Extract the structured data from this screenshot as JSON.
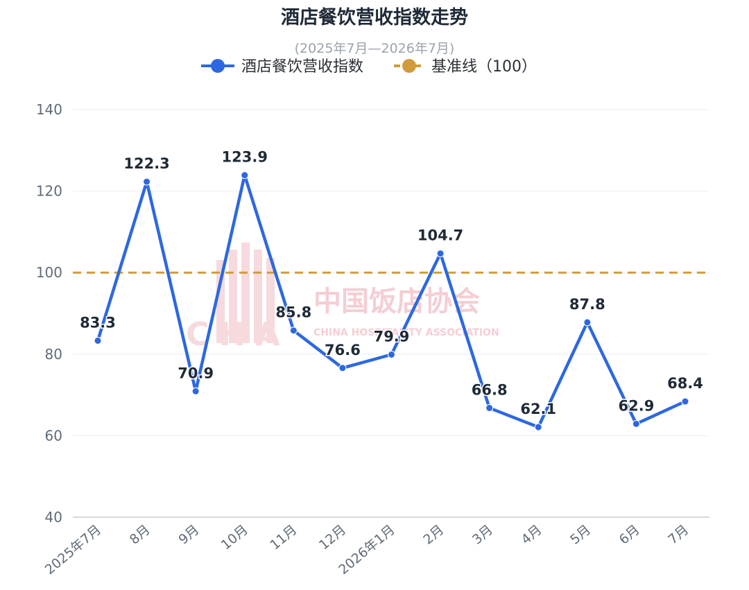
{
  "chart_data": {
    "type": "line",
    "title": "酒店餐饮营收指数走势",
    "subtitle": "(2025年7月—2026年7月)",
    "categories": [
      "2025年7月",
      "8月",
      "9月",
      "10月",
      "11月",
      "12月",
      "2026年1月",
      "2月",
      "3月",
      "4月",
      "5月",
      "6月",
      "7月"
    ],
    "series": [
      {
        "name": "酒店餐饮营收指数",
        "color": "#2d68e0",
        "values": [
          83.3,
          122.3,
          70.9,
          123.9,
          85.8,
          76.6,
          79.9,
          104.7,
          66.8,
          62.1,
          87.8,
          62.9,
          68.4
        ],
        "labels": [
          "83.3",
          "122.3",
          "70.9",
          "123.9",
          "85.8",
          "76.6",
          "79.9",
          "104.7",
          "66.8",
          "62.1",
          "87.8",
          "62.9",
          "68.4"
        ]
      }
    ],
    "reference_line": {
      "name": "基准线（100）",
      "value": 100,
      "color": "#d19b3b",
      "style": "dashed"
    },
    "ylim": [
      40,
      140
    ],
    "yticks": [
      "40",
      "60",
      "80",
      "100",
      "120",
      "140"
    ],
    "grid": true,
    "legend_position": "top-center"
  },
  "watermark": {
    "cn": "中国饭店协会",
    "en": "CHINA HOSPITALITY ASSOCIATION",
    "logo_text": "CHA"
  }
}
